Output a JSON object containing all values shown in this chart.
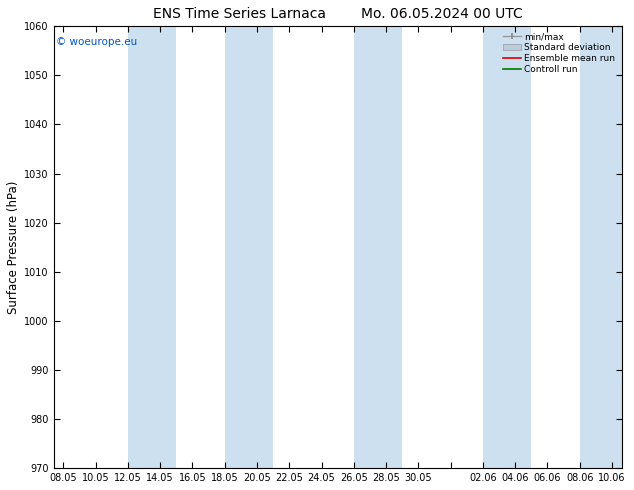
{
  "title_left": "ENS Time Series Larnaca",
  "title_right": "Mo. 06.05.2024 00 UTC",
  "ylabel": "Surface Pressure (hPa)",
  "ylim": [
    970,
    1060
  ],
  "yticks": [
    970,
    980,
    990,
    1000,
    1010,
    1020,
    1030,
    1040,
    1050,
    1060
  ],
  "xtick_labels": [
    "08.05",
    "10.05",
    "12.05",
    "14.05",
    "16.05",
    "18.05",
    "20.05",
    "22.05",
    "24.05",
    "26.05",
    "28.05",
    "30.05",
    "",
    "02.06",
    "04.06",
    "06.06",
    "08.06",
    "10.06"
  ],
  "background_color": "#ffffff",
  "plot_bg_color": "#ffffff",
  "band_color": "#cce0f0",
  "copyright_text": "© woeurope.eu",
  "copyright_color": "#0055cc",
  "legend_entries": [
    "min/max",
    "Standard deviation",
    "Ensemble mean run",
    "Controll run"
  ],
  "title_fontsize": 10,
  "tick_fontsize": 7,
  "ylabel_fontsize": 8.5
}
